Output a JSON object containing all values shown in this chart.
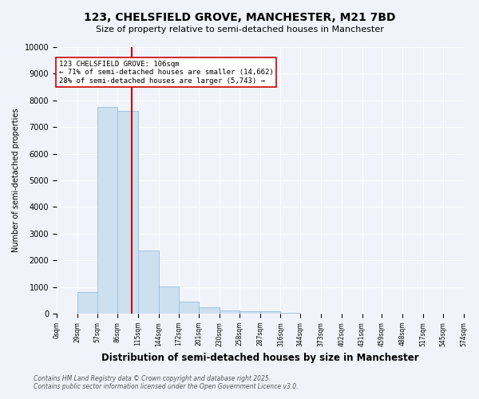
{
  "title_line1": "123, CHELSFIELD GROVE, MANCHESTER, M21 7BD",
  "title_line2": "Size of property relative to semi-detached houses in Manchester",
  "xlabel": "Distribution of semi-detached houses by size in Manchester",
  "ylabel": "Number of semi-detached properties",
  "annotation_line1": "123 CHELSFIELD GROVE: 106sqm",
  "annotation_line2": "← 71% of semi-detached houses are smaller (14,662)",
  "annotation_line3": "28% of semi-detached houses are larger (5,743) →",
  "property_size": 106,
  "bin_edges": [
    0,
    29,
    57,
    86,
    115,
    144,
    172,
    201,
    230,
    258,
    287,
    316,
    344,
    373,
    402,
    431,
    459,
    488,
    517,
    545,
    574
  ],
  "bar_values": [
    0,
    800,
    7750,
    7620,
    2380,
    1020,
    450,
    255,
    130,
    80,
    90,
    30,
    10,
    5,
    5,
    2,
    2,
    1,
    1,
    0
  ],
  "bar_color": "#cce0f0",
  "bar_edgecolor": "#a0c4e0",
  "property_line_color": "#cc0000",
  "annotation_box_edgecolor": "#cc0000",
  "annotation_box_facecolor": "white",
  "background_color": "#f0f4fa",
  "ylim": [
    0,
    10000
  ],
  "yticks": [
    0,
    1000,
    2000,
    3000,
    4000,
    5000,
    6000,
    7000,
    8000,
    9000,
    10000
  ],
  "footer_line1": "Contains HM Land Registry data © Crown copyright and database right 2025.",
  "footer_line2": "Contains public sector information licensed under the Open Government Licence v3.0.",
  "tick_labels": [
    "0sqm",
    "29sqm",
    "57sqm",
    "86sqm",
    "115sqm",
    "144sqm",
    "172sqm",
    "201sqm",
    "230sqm",
    "258sqm",
    "287sqm",
    "316sqm",
    "344sqm",
    "373sqm",
    "402sqm",
    "431sqm",
    "459sqm",
    "488sqm",
    "517sqm",
    "545sqm",
    "574sqm"
  ]
}
